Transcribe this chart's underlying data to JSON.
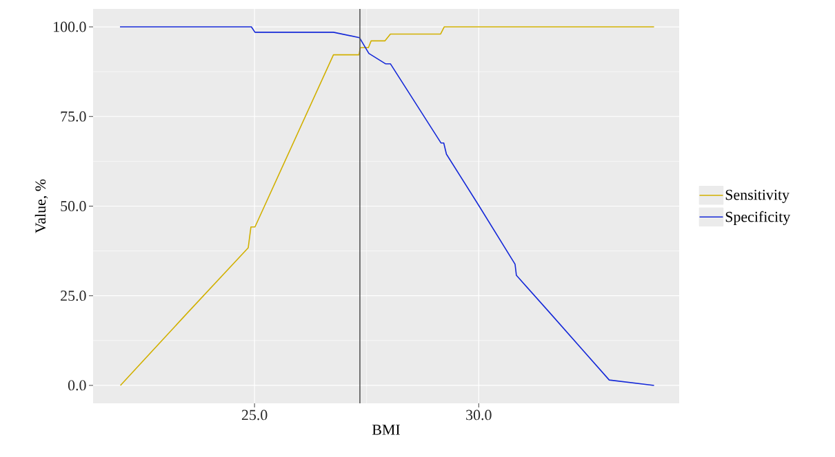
{
  "chart_data": {
    "type": "line",
    "xlabel": "BMI",
    "ylabel": "Value, %",
    "xlim": [
      21.4,
      34.47
    ],
    "ylim": [
      -5,
      105
    ],
    "xticks": [
      {
        "value": 25,
        "label": "25.0"
      },
      {
        "value": 30,
        "label": "30.0"
      }
    ],
    "yticks": [
      {
        "value": 0,
        "label": "0.0"
      },
      {
        "value": 25,
        "label": "25.0"
      },
      {
        "value": 50,
        "label": "50.0"
      },
      {
        "value": 75,
        "label": "75.0"
      },
      {
        "value": 100,
        "label": "100.0"
      }
    ],
    "grid": true,
    "legend": "right",
    "marker": "none",
    "line_style": "solid",
    "ref_lines": [
      {
        "axis": "x",
        "value": 27.35,
        "color": "#555555"
      }
    ],
    "series": [
      {
        "name": "Sensitivity",
        "color": "#D1B000",
        "x": [
          22.01,
          23.54,
          24.86,
          24.92,
          25.01,
          26.76,
          27.33,
          27.36,
          27.54,
          27.6,
          27.91,
          28.03,
          29.15,
          29.23,
          33.91
        ],
        "values": [
          0,
          20.7,
          38.4,
          44.2,
          44.2,
          92.2,
          92.2,
          94.2,
          94.2,
          96.1,
          96.1,
          98.0,
          98.0,
          100,
          100
        ]
      },
      {
        "name": "Specificity",
        "color": "#1428D8",
        "x": [
          22.0,
          24.93,
          25.01,
          26.76,
          27.34,
          27.55,
          27.92,
          28.03,
          29.16,
          29.22,
          29.28,
          30.01,
          30.81,
          30.84,
          31.56,
          32.91,
          33.91
        ],
        "values": [
          100,
          100,
          98.5,
          98.5,
          97.0,
          92.6,
          89.7,
          89.7,
          67.6,
          67.6,
          64.5,
          50.0,
          33.8,
          30.7,
          20.6,
          1.5,
          0
        ]
      }
    ]
  }
}
